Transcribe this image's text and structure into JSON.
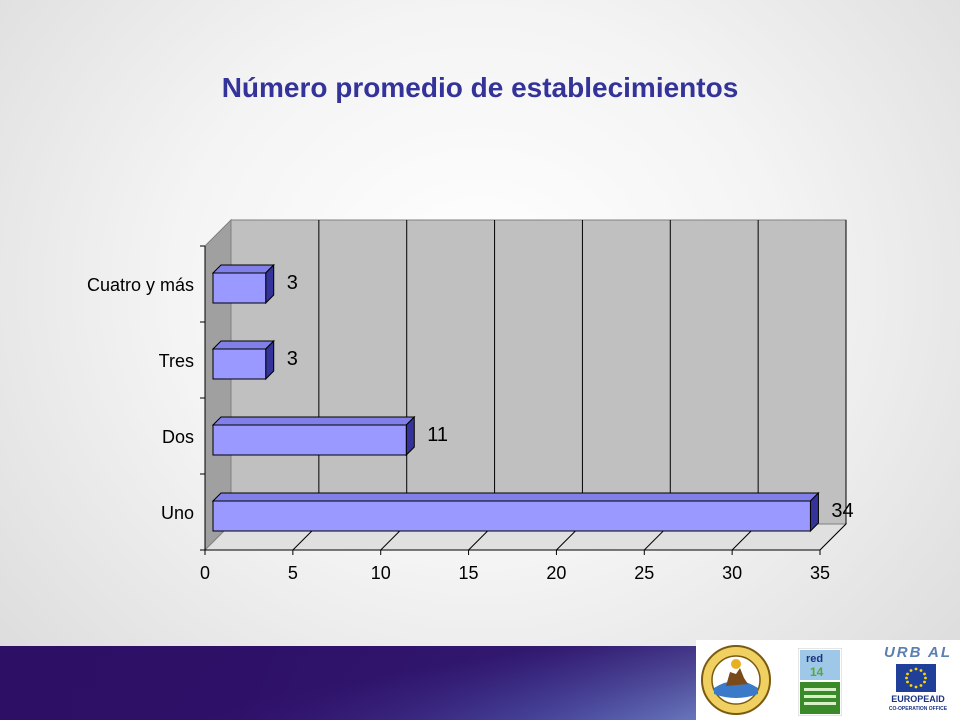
{
  "slide": {
    "title": "Número promedio de establecimientos"
  },
  "chart_data": {
    "type": "bar",
    "orientation": "horizontal",
    "style": "3d",
    "title": "Número promedio de establecimientos",
    "categories": [
      "Cuatro y más",
      "Tres",
      "Dos",
      "Uno"
    ],
    "values": [
      3,
      3,
      11,
      34
    ],
    "data_labels": [
      "3",
      "3",
      "11",
      "34"
    ],
    "xlim": [
      0,
      35
    ],
    "x_ticks": [
      "0",
      "5",
      "10",
      "15",
      "20",
      "25",
      "30",
      "35"
    ],
    "grid": true,
    "legend": "none",
    "colors": {
      "bar": "#9999ff",
      "bar_top": "#8080e8",
      "bar_side": "#333399",
      "wall": "#c0c0c0",
      "floor": "#e0e0e0"
    }
  },
  "footer": {
    "logos": {
      "seal": "municipality-seal-logo",
      "red": "red-logo",
      "urbal": "URB AL",
      "europeaid": "EUROPEAID",
      "europeaid_sub": "CO-OPERATION OFFICE"
    },
    "colors": {
      "band_dark": "#2d0f66",
      "band_light": "#b9d3f4"
    }
  }
}
